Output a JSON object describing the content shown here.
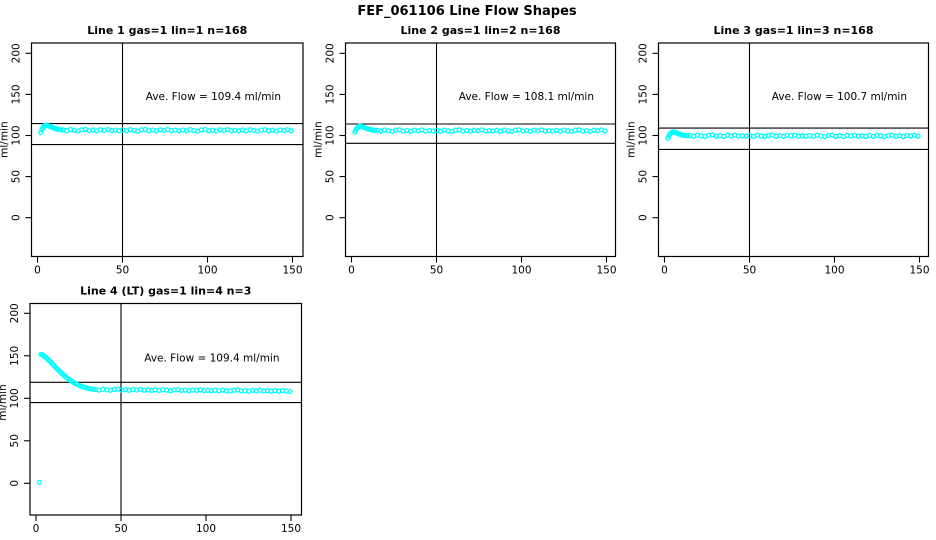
{
  "title": "FEF_061106  Line Flow Shapes",
  "y_axis_label": "ml/min",
  "colors": {
    "points": "#00FFFF",
    "axis": "#000000",
    "background": "#FFFFFF"
  },
  "axes": {
    "x_ticks": [
      0,
      50,
      100,
      150
    ],
    "y_ticks": [
      0,
      50,
      100,
      150,
      200
    ],
    "x_ref_line": 50
  },
  "noise_pattern": [
    0.4,
    -0.7,
    0.8,
    -0.2,
    -0.9,
    0.5,
    1.0,
    -0.5,
    0.2,
    -0.8,
    0.6,
    -0.1,
    0.9,
    -0.4,
    0.1,
    -0.6
  ],
  "chart_data": [
    {
      "type": "scatter",
      "title": "Line 1 gas=1 lin=1 n=168",
      "n": 168,
      "ave_flow": 109.4,
      "ave_flow_text": "Ave. Flow =  109.4  ml/min",
      "xlabel": "",
      "ylabel": "ml/min",
      "xlim": [
        0,
        150
      ],
      "y_tick_range": [
        0,
        200
      ],
      "ref_line_x": 50,
      "ref_lines_y": [
        114.5,
        89.0
      ],
      "points_head": [
        [
          2,
          103.5
        ],
        [
          2.6,
          107.2
        ],
        [
          3.2,
          109.6
        ],
        [
          3.8,
          111.2
        ],
        [
          4.5,
          112.3
        ],
        [
          5.2,
          112.5
        ],
        [
          6,
          112.1
        ],
        [
          6.8,
          111.5
        ],
        [
          7.6,
          110.8
        ],
        [
          8.4,
          110.1
        ],
        [
          9.2,
          109.4
        ],
        [
          10,
          108.8
        ],
        [
          10.9,
          108.2
        ],
        [
          11.8,
          107.7
        ],
        [
          12.7,
          107.3
        ],
        [
          13.6,
          106.9
        ]
      ],
      "flat_band": {
        "x_start": 15,
        "x_end": 149.5,
        "x_step": 2.2,
        "base_start": 106.5,
        "base_end": 106.2,
        "noise_amp": 1.0
      }
    },
    {
      "type": "scatter",
      "title": "Line 2 gas=1 lin=2 n=168",
      "n": 168,
      "ave_flow": 108.1,
      "ave_flow_text": "Ave. Flow =  108.1  ml/min",
      "xlabel": "",
      "ylabel": "ml/min",
      "xlim": [
        0,
        150
      ],
      "y_tick_range": [
        0,
        200
      ],
      "ref_line_x": 50,
      "ref_lines_y": [
        114.0,
        90.5
      ],
      "points_head": [
        [
          2,
          104.3
        ],
        [
          2.6,
          106.6
        ],
        [
          3.2,
          108.7
        ],
        [
          3.8,
          110.2
        ],
        [
          4.5,
          111.2
        ],
        [
          5.2,
          111.3
        ],
        [
          6,
          110.9
        ],
        [
          6.8,
          110.3
        ],
        [
          7.6,
          109.6
        ],
        [
          8.4,
          108.9
        ],
        [
          9.2,
          108.3
        ],
        [
          10,
          107.8
        ],
        [
          10.9,
          107.3
        ],
        [
          11.8,
          106.9
        ],
        [
          12.7,
          106.5
        ],
        [
          13.6,
          106.2
        ]
      ],
      "flat_band": {
        "x_start": 15,
        "x_end": 149.5,
        "x_step": 2.2,
        "base_start": 105.9,
        "base_end": 105.9,
        "noise_amp": 1.0
      }
    },
    {
      "type": "scatter",
      "title": "Line 3 gas=1 lin=3 n=168",
      "n": 168,
      "ave_flow": 100.7,
      "ave_flow_text": "Ave. Flow =  100.7  ml/min",
      "xlabel": "",
      "ylabel": "ml/min",
      "xlim": [
        0,
        150
      ],
      "y_tick_range": [
        0,
        200
      ],
      "ref_line_x": 50,
      "ref_lines_y": [
        109.0,
        83.0
      ],
      "points_head": [
        [
          2,
          96.6
        ],
        [
          2.6,
          99.4
        ],
        [
          3.2,
          101.6
        ],
        [
          3.8,
          103.1
        ],
        [
          4.5,
          104.1
        ],
        [
          5.2,
          104.4
        ],
        [
          6,
          104.0
        ],
        [
          6.8,
          103.4
        ],
        [
          7.6,
          102.7
        ],
        [
          8.4,
          102.0
        ],
        [
          9.2,
          101.4
        ],
        [
          10,
          100.9
        ],
        [
          10.9,
          100.5
        ],
        [
          11.8,
          100.2
        ],
        [
          12.7,
          100.0
        ],
        [
          13.6,
          99.8
        ]
      ],
      "flat_band": {
        "x_start": 15,
        "x_end": 149.5,
        "x_step": 2.2,
        "base_start": 99.7,
        "base_end": 99.5,
        "noise_amp": 1.0
      }
    },
    {
      "type": "scatter",
      "title": "Line 4 (LT) gas=1 lin=4 n=3",
      "n": 3,
      "ave_flow": 109.4,
      "ave_flow_text": "Ave. Flow =  109.4  ml/min",
      "xlabel": "",
      "ylabel": "ml/min",
      "xlim": [
        0,
        150
      ],
      "y_tick_range": [
        0,
        200
      ],
      "ref_line_x": 50,
      "ref_lines_y": [
        118.8,
        95.0
      ],
      "points_head": [
        [
          2,
          1
        ],
        [
          3,
          151.6
        ],
        [
          3.8,
          150.9
        ],
        [
          4.6,
          149.9
        ],
        [
          5.4,
          148.7
        ],
        [
          6.2,
          147.3
        ],
        [
          7,
          145.8
        ],
        [
          7.9,
          144.1
        ],
        [
          8.8,
          142.3
        ],
        [
          9.7,
          140.4
        ],
        [
          10.6,
          138.5
        ],
        [
          11.5,
          136.6
        ],
        [
          12.5,
          134.6
        ],
        [
          13.5,
          132.6
        ],
        [
          14.5,
          130.7
        ],
        [
          15.5,
          128.8
        ],
        [
          16.5,
          127.0
        ],
        [
          17.5,
          125.3
        ],
        [
          18.6,
          123.5
        ],
        [
          19.7,
          121.9
        ],
        [
          20.8,
          120.4
        ],
        [
          21.9,
          119.0
        ],
        [
          23,
          117.7
        ],
        [
          24.1,
          116.5
        ],
        [
          25.2,
          115.5
        ],
        [
          26.4,
          114.5
        ],
        [
          27.6,
          113.6
        ],
        [
          28.8,
          112.8
        ],
        [
          30,
          112.1
        ],
        [
          31.3,
          111.5
        ],
        [
          32.6,
          111.0
        ],
        [
          33.9,
          110.6
        ]
      ],
      "flat_band": {
        "x_start": 35,
        "x_end": 149.5,
        "x_step": 2.2,
        "base_start": 110.2,
        "base_end": 108.6,
        "noise_amp": 0.7
      }
    }
  ]
}
